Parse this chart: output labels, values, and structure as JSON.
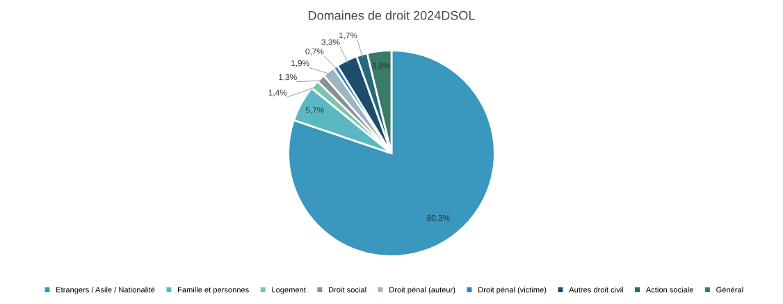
{
  "chart_data": {
    "type": "pie",
    "title": "Domaines de droit 2024DSOL",
    "categories": [
      "Etrangers / Asile / Nationalité",
      "Famille et personnes",
      "Logement",
      "Droit social",
      "Droit pénal (auteur)",
      "Droit pénal (victime)",
      "Autres droit civil",
      "Action sociale",
      "Général"
    ],
    "values": [
      80.3,
      5.7,
      1.4,
      1.3,
      1.9,
      0.7,
      3.3,
      1.7,
      3.8
    ],
    "colors": [
      "#3a97bd",
      "#5bb8c3",
      "#7cc4ab",
      "#8a8f93",
      "#9ab6c3",
      "#2f7fc9",
      "#1c4e6b",
      "#25697a",
      "#3a7a66"
    ],
    "value_labels": [
      "80,3%",
      "5,7%",
      "1,4%",
      "1,3%",
      "1,9%",
      "0,7%",
      "3,3%",
      "1,7%",
      "3,8%"
    ],
    "legend": "bottom"
  }
}
